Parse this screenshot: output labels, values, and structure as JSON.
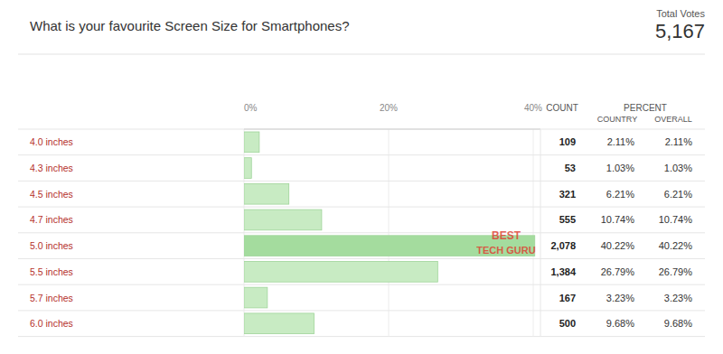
{
  "chart_data": {
    "type": "bar",
    "orientation": "horizontal",
    "title": "What is your favourite Screen Size for Smartphones?",
    "total_title": "Total Votes",
    "total": {
      "value": 5167,
      "label": "5,167"
    },
    "categories": [
      "4.0 inches",
      "4.3 inches",
      "4.5 inches",
      "4.7 inches",
      "5.0 inches",
      "5.5 inches",
      "5.7 inches",
      "6.0 inches"
    ],
    "series": [
      {
        "name": "OVERALL",
        "values": [
          2.11,
          1.03,
          6.21,
          10.74,
          40.22,
          26.79,
          3.23,
          9.68
        ],
        "value_labels": [
          "2.11%",
          "1.03%",
          "6.21%",
          "10.74%",
          "40.22%",
          "26.79%",
          "3.23%",
          "9.68%"
        ],
        "colors": [
          "#c8ebc3",
          "#c8ebc3",
          "#c8ebc3",
          "#c8ebc3",
          "#a4dc9e",
          "#c8ebc3",
          "#c8ebc3",
          "#c8ebc3"
        ]
      }
    ],
    "xlim": [
      0,
      41
    ],
    "xticks": [
      {
        "value": 0,
        "label": "0%"
      },
      {
        "value": 20,
        "label": "20%"
      },
      {
        "value": 40,
        "label": "40%"
      }
    ],
    "grid": true,
    "columns": {
      "count": "COUNT",
      "percent": "PERCENT",
      "country": "COUNTRY"
    },
    "counts": [
      109,
      53,
      321,
      555,
      2078,
      1384,
      167,
      500
    ],
    "count_labels": [
      "109",
      "53",
      "321",
      "555",
      "2,078",
      "1,384",
      "167",
      "500"
    ],
    "country_values": [
      2.11,
      1.03,
      6.21,
      10.74,
      40.22,
      26.79,
      3.23,
      9.68
    ],
    "country_labels": [
      "2.11%",
      "1.03%",
      "6.21%",
      "10.74%",
      "40.22%",
      "26.79%",
      "3.23%",
      "9.68%"
    ],
    "annotations": [
      "BEST",
      "TECH GURU"
    ]
  }
}
